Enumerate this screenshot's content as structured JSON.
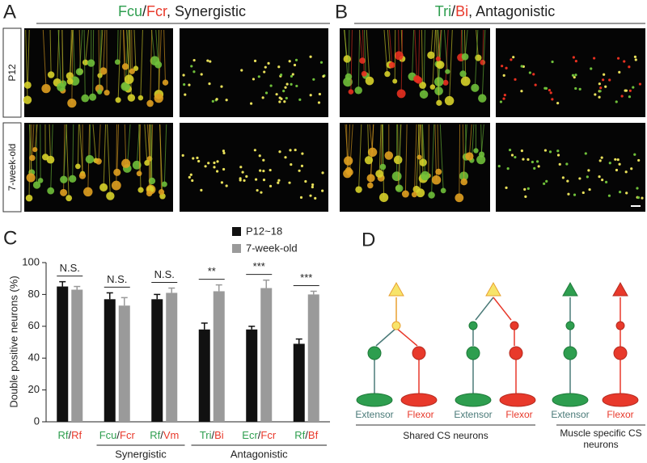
{
  "panel_a": {
    "label": "A",
    "title": [
      "Fcu",
      "/",
      "Fcr",
      ", Synergistic"
    ],
    "rows": [
      "P12",
      "7-week-old"
    ]
  },
  "panel_b": {
    "label": "B",
    "title": [
      "Tri",
      "/",
      "Bi",
      ", Antagonistic"
    ]
  },
  "chart_data": {
    "type": "bar",
    "label": "C",
    "ylabel": "Double positive neurons (%)",
    "categories": [
      [
        "Rf",
        "/",
        "Rf"
      ],
      [
        "Fcu",
        "/",
        "Fcr"
      ],
      [
        "Rf",
        "/",
        "Vm"
      ],
      [
        "Tri",
        "/",
        "Bi"
      ],
      [
        "Ecr",
        "/",
        "Fcr"
      ],
      [
        "Rf",
        "/",
        "Bf"
      ]
    ],
    "series": [
      {
        "name": "P12~18",
        "color": "#111111",
        "values": [
          85,
          77,
          77,
          58,
          58,
          49
        ],
        "errors": [
          3,
          4,
          3,
          4,
          2,
          3
        ]
      },
      {
        "name": "7-week-old",
        "color": "#9a9a9a",
        "values": [
          83,
          73,
          81,
          82,
          84,
          80
        ],
        "errors": [
          2,
          5,
          3,
          4,
          5,
          2
        ]
      }
    ],
    "significance": [
      "N.S.",
      "N.S.",
      "N.S.",
      "**",
      "***",
      "***"
    ],
    "groups": [
      "Synergistic",
      "Antagonistic"
    ],
    "ylim": [
      0,
      100
    ],
    "yticks": [
      0,
      20,
      40,
      60,
      80,
      100
    ]
  },
  "panel_d": {
    "label": "D",
    "circuits": [
      {
        "extensor": "Extensor",
        "flexor": "Flexor"
      },
      {
        "extensor": "Extensor",
        "flexor": "Flexor"
      },
      {
        "extensor": "Extensor",
        "flexor": "Flexor"
      }
    ],
    "groups": [
      "Shared CS neurons",
      "Muscle specific CS",
      "neurons"
    ]
  }
}
